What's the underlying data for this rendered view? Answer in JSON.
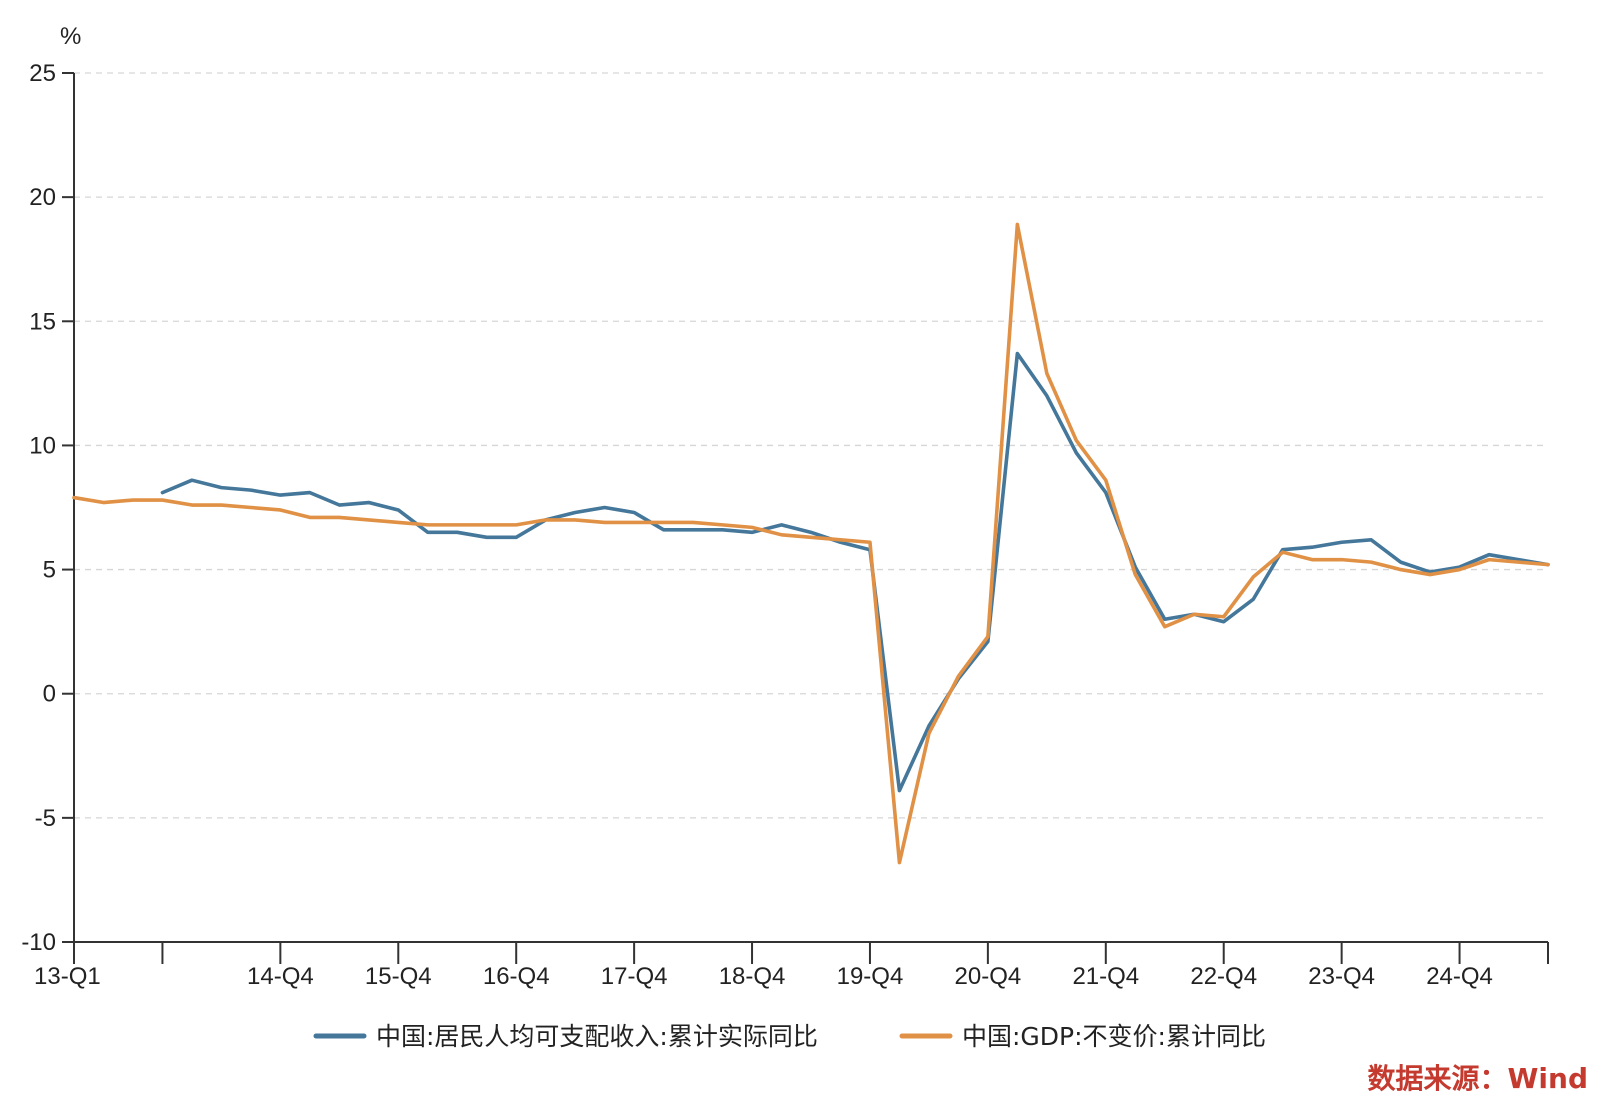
{
  "chart_data": {
    "type": "line",
    "ylabel": "%",
    "ylim": [
      -10,
      25
    ],
    "yticks": [
      25,
      20,
      15,
      10,
      5,
      0,
      -5,
      -10
    ],
    "grid": true,
    "legend_position": "bottom",
    "x": [
      "13-Q1",
      "13-Q2",
      "13-Q3",
      "13-Q4",
      "14-Q1",
      "14-Q2",
      "14-Q3",
      "14-Q4",
      "15-Q1",
      "15-Q2",
      "15-Q3",
      "15-Q4",
      "16-Q1",
      "16-Q2",
      "16-Q3",
      "16-Q4",
      "17-Q1",
      "17-Q2",
      "17-Q3",
      "17-Q4",
      "18-Q1",
      "18-Q2",
      "18-Q3",
      "18-Q4",
      "19-Q1",
      "19-Q2",
      "19-Q3",
      "19-Q4",
      "20-Q1",
      "20-Q2",
      "20-Q3",
      "20-Q4",
      "21-Q1",
      "21-Q2",
      "21-Q3",
      "21-Q4",
      "22-Q1",
      "22-Q2",
      "22-Q3",
      "22-Q4",
      "23-Q1",
      "23-Q2",
      "23-Q3",
      "23-Q4",
      "24-Q1",
      "24-Q2",
      "24-Q3",
      "24-Q4",
      "25-Q1",
      "25-Q2",
      "25-Q3"
    ],
    "xtick_labels": [
      {
        "index": 0,
        "label": "13-Q1"
      },
      {
        "index": 3,
        "label": ""
      },
      {
        "index": 7,
        "label": "14-Q4"
      },
      {
        "index": 11,
        "label": "15-Q4"
      },
      {
        "index": 15,
        "label": "16-Q4"
      },
      {
        "index": 19,
        "label": "17-Q4"
      },
      {
        "index": 23,
        "label": "18-Q4"
      },
      {
        "index": 27,
        "label": "19-Q4"
      },
      {
        "index": 31,
        "label": "20-Q4"
      },
      {
        "index": 35,
        "label": "21-Q4"
      },
      {
        "index": 39,
        "label": "22-Q4"
      },
      {
        "index": 43,
        "label": "23-Q4"
      },
      {
        "index": 47,
        "label": "24-Q4"
      },
      {
        "index": 50,
        "label": ""
      }
    ],
    "series": [
      {
        "name": "中国:居民人均可支配收入:累计实际同比",
        "color": "#44779a",
        "values": [
          null,
          null,
          null,
          8.1,
          8.6,
          8.3,
          8.2,
          8.0,
          8.1,
          7.6,
          7.7,
          7.4,
          6.5,
          6.5,
          6.3,
          6.3,
          7.0,
          7.3,
          7.5,
          7.3,
          6.6,
          6.6,
          6.6,
          6.5,
          6.8,
          6.5,
          6.1,
          5.8,
          -3.9,
          -1.3,
          0.6,
          2.1,
          13.7,
          12.0,
          9.7,
          8.1,
          5.1,
          3.0,
          3.2,
          2.9,
          3.8,
          5.8,
          5.9,
          6.1,
          6.2,
          5.3,
          4.9,
          5.1,
          5.6,
          5.4,
          5.2
        ]
      },
      {
        "name": "中国:GDP:不变价:累计同比",
        "color": "#e09145",
        "values": [
          7.9,
          7.7,
          7.8,
          7.8,
          7.6,
          7.6,
          7.5,
          7.4,
          7.1,
          7.1,
          7.0,
          6.9,
          6.8,
          6.8,
          6.8,
          6.8,
          7.0,
          7.0,
          6.9,
          6.9,
          6.9,
          6.9,
          6.8,
          6.7,
          6.4,
          6.3,
          6.2,
          6.1,
          -6.8,
          -1.6,
          0.7,
          2.3,
          18.9,
          12.9,
          10.2,
          8.6,
          4.8,
          2.7,
          3.2,
          3.1,
          4.7,
          5.7,
          5.4,
          5.4,
          5.3,
          5.0,
          4.8,
          5.0,
          5.4,
          5.3,
          5.2
        ]
      }
    ]
  },
  "source_note": "数据来源：Wind",
  "source_color": "#c43a2f"
}
